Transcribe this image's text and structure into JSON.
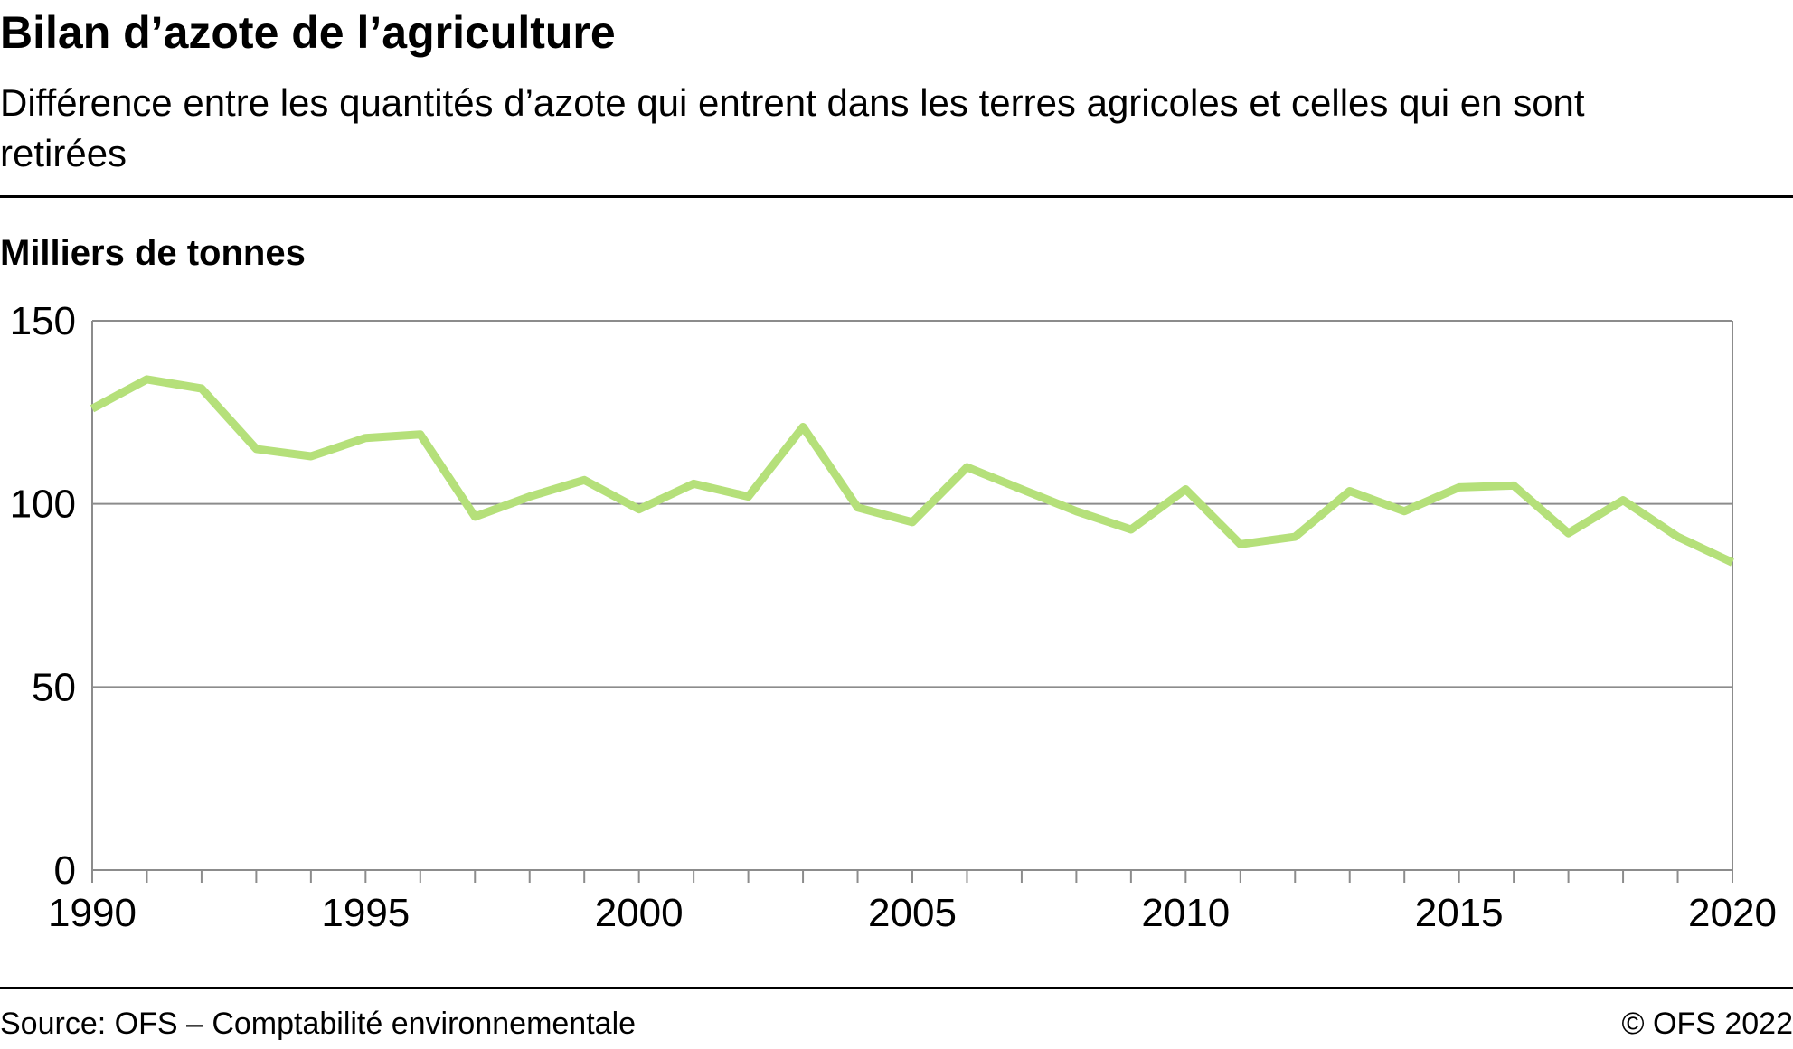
{
  "header": {
    "title": "Bilan d’azote de l’agriculture",
    "subtitle": "Différence entre les quantités d’azote qui entrent dans les terres agricoles et celles qui en sont retirées"
  },
  "footer": {
    "source": "Source: OFS – Comptabilité environnementale",
    "copyright": "© OFS 2022"
  },
  "chart_data": {
    "type": "line",
    "title": "Bilan d’azote de l’agriculture",
    "subtitle": "Différence entre les quantités d’azote qui entrent dans les terres agricoles et celles qui en sont retirées",
    "ylabel": "Milliers de tonnes",
    "xlabel": "",
    "xlim": [
      1990,
      2020
    ],
    "ylim": [
      0,
      150
    ],
    "x_ticks": [
      1990,
      1995,
      2000,
      2005,
      2010,
      2015,
      2020
    ],
    "y_ticks": [
      0,
      50,
      100,
      150
    ],
    "grid": "horizontal",
    "line_color": "#b5e07a",
    "x": [
      1990,
      1991,
      1992,
      1993,
      1994,
      1995,
      1996,
      1997,
      1998,
      1999,
      2000,
      2001,
      2002,
      2003,
      2004,
      2005,
      2006,
      2007,
      2008,
      2009,
      2010,
      2011,
      2012,
      2013,
      2014,
      2015,
      2016,
      2017,
      2018,
      2019,
      2020
    ],
    "series": [
      {
        "values": [
          126,
          134,
          131.5,
          115,
          113,
          118,
          119,
          96.5,
          102,
          106.5,
          98.5,
          105.5,
          102,
          121,
          99,
          95,
          110,
          104,
          98,
          93,
          104,
          89,
          91,
          103.5,
          98,
          104.5,
          105,
          92,
          101,
          91,
          84
        ]
      }
    ]
  }
}
